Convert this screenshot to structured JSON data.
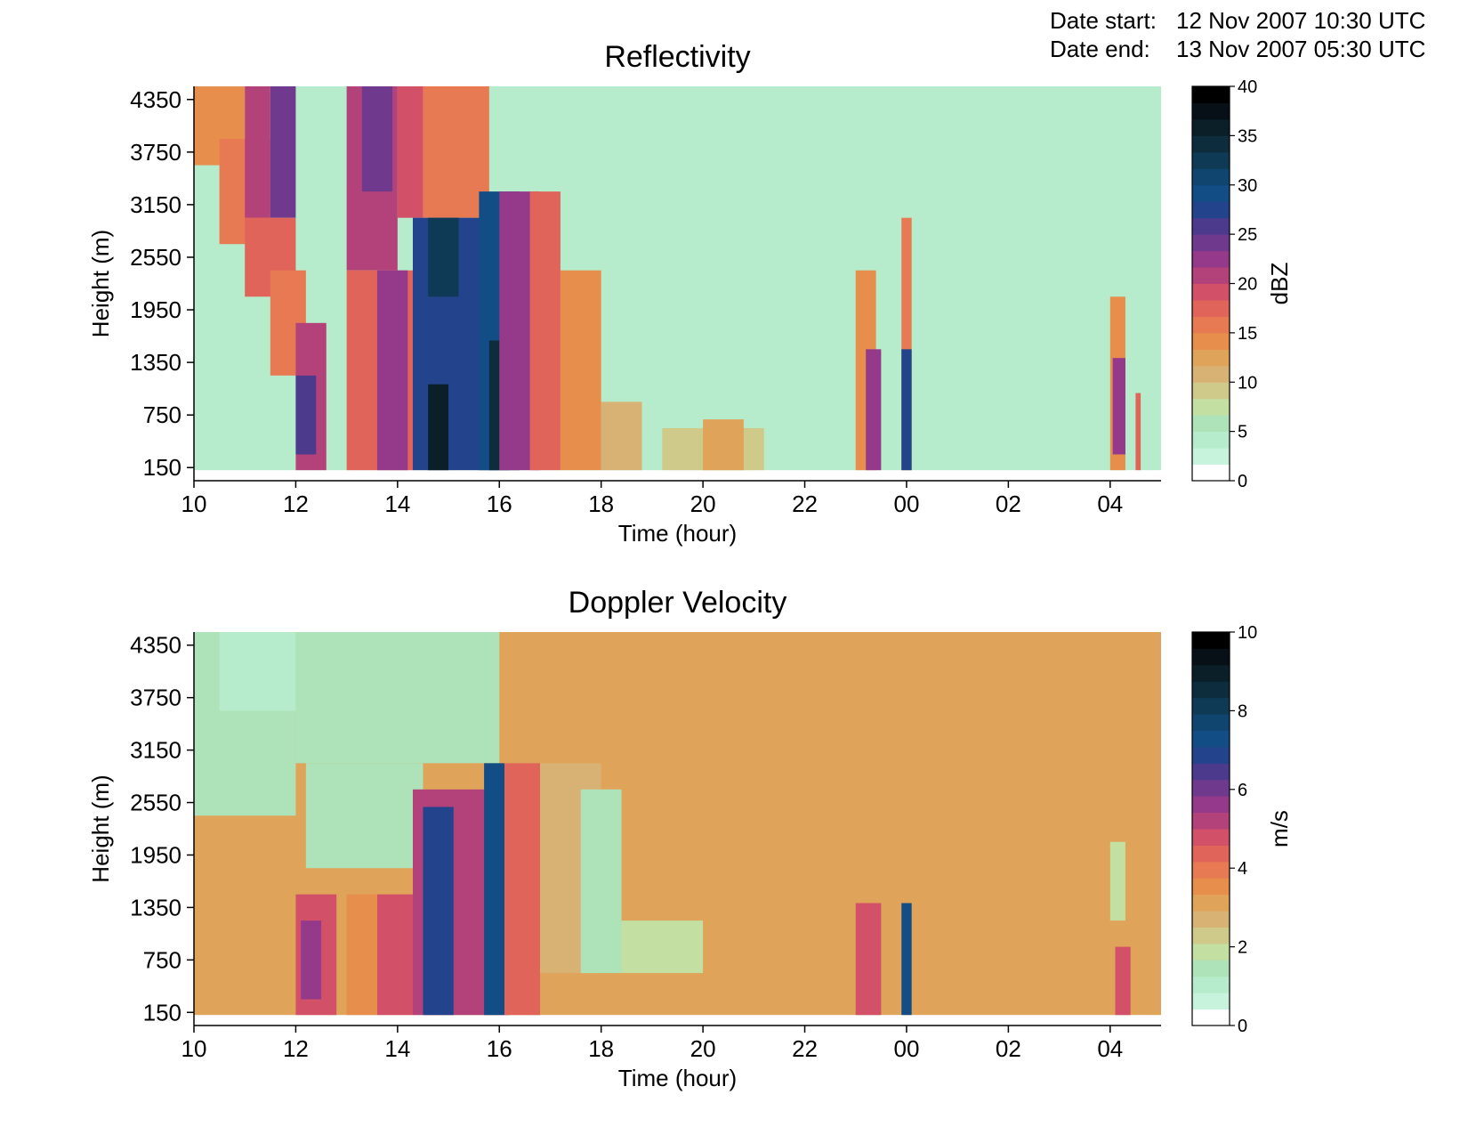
{
  "header": {
    "start_label": "Date start:",
    "start_value": "12 Nov 2007 10:30 UTC",
    "end_label": "Date end:",
    "end_value": "13 Nov 2007 05:30 UTC"
  },
  "chart_data": [
    {
      "type": "heatmap",
      "title": "Reflectivity",
      "xlabel": "Time (hour)",
      "ylabel": "Height (m)",
      "xlim": [
        10,
        29
      ],
      "ylim": [
        0,
        4500
      ],
      "x_ticks": [
        "10",
        "12",
        "14",
        "16",
        "18",
        "20",
        "22",
        "00",
        "02",
        "04"
      ],
      "y_ticks": [
        "150",
        "750",
        "1350",
        "1950",
        "2550",
        "3150",
        "3750",
        "4350"
      ],
      "colorbar": {
        "label": "dBZ",
        "min": 0,
        "max": 40,
        "ticks": [
          "0",
          "5",
          "10",
          "15",
          "20",
          "25",
          "30",
          "35",
          "40"
        ],
        "levels": [
          "#ffffff",
          "#c7f2dc",
          "#b6eccb",
          "#aee3b9",
          "#c3dfa2",
          "#cfc98a",
          "#d8b274",
          "#e0a35a",
          "#e88e4c",
          "#e77a52",
          "#e0645a",
          "#d25068",
          "#b4427a",
          "#95398a",
          "#6f3a8e",
          "#4c3b8c",
          "#23448c",
          "#134d86",
          "#0f456e",
          "#0f3a56",
          "#0d2c3c",
          "#0b1f29",
          "#061016",
          "#000000"
        ]
      },
      "cells": [
        {
          "x0": 10.0,
          "x1": 29.0,
          "y0": 0,
          "y1": 4500,
          "v": 4
        },
        {
          "x0": 10.0,
          "x1": 29.0,
          "y0": 0,
          "y1": 120,
          "v": 0
        },
        {
          "x0": 10.0,
          "x1": 11.0,
          "y0": 3600,
          "y1": 4500,
          "v": 14
        },
        {
          "x0": 10.5,
          "x1": 11.5,
          "y0": 2700,
          "y1": 3900,
          "v": 15
        },
        {
          "x0": 11.0,
          "x1": 11.5,
          "y0": 3000,
          "y1": 4500,
          "v": 20
        },
        {
          "x0": 11.5,
          "x1": 12.0,
          "y0": 3000,
          "y1": 4500,
          "v": 24
        },
        {
          "x0": 11.0,
          "x1": 12.0,
          "y0": 2100,
          "y1": 3000,
          "v": 18
        },
        {
          "x0": 11.5,
          "x1": 12.2,
          "y0": 1200,
          "y1": 2400,
          "v": 16
        },
        {
          "x0": 12.0,
          "x1": 12.6,
          "y0": 120,
          "y1": 1800,
          "v": 21
        },
        {
          "x0": 12.0,
          "x1": 12.4,
          "y0": 300,
          "y1": 1200,
          "v": 26
        },
        {
          "x0": 13.0,
          "x1": 14.0,
          "y0": 2400,
          "y1": 4500,
          "v": 20
        },
        {
          "x0": 13.3,
          "x1": 13.9,
          "y0": 3300,
          "y1": 4500,
          "v": 24
        },
        {
          "x0": 13.0,
          "x1": 14.3,
          "y0": 120,
          "y1": 2400,
          "v": 17
        },
        {
          "x0": 13.6,
          "x1": 14.2,
          "y0": 120,
          "y1": 2400,
          "v": 22
        },
        {
          "x0": 14.0,
          "x1": 14.5,
          "y0": 3000,
          "y1": 4500,
          "v": 19
        },
        {
          "x0": 14.5,
          "x1": 15.8,
          "y0": 3000,
          "y1": 4500,
          "v": 16
        },
        {
          "x0": 14.3,
          "x1": 16.0,
          "y0": 120,
          "y1": 3000,
          "v": 27
        },
        {
          "x0": 14.6,
          "x1": 15.2,
          "y0": 2100,
          "y1": 3000,
          "v": 33
        },
        {
          "x0": 14.6,
          "x1": 15.0,
          "y0": 120,
          "y1": 1100,
          "v": 36
        },
        {
          "x0": 15.6,
          "x1": 16.4,
          "y0": 120,
          "y1": 3300,
          "v": 29
        },
        {
          "x0": 15.8,
          "x1": 16.2,
          "y0": 120,
          "y1": 1600,
          "v": 35
        },
        {
          "x0": 16.0,
          "x1": 16.8,
          "y0": 120,
          "y1": 3300,
          "v": 22
        },
        {
          "x0": 16.6,
          "x1": 17.2,
          "y0": 120,
          "y1": 3300,
          "v": 17
        },
        {
          "x0": 17.2,
          "x1": 18.0,
          "y0": 120,
          "y1": 2400,
          "v": 14
        },
        {
          "x0": 18.0,
          "x1": 18.8,
          "y0": 120,
          "y1": 900,
          "v": 11
        },
        {
          "x0": 19.2,
          "x1": 21.2,
          "y0": 120,
          "y1": 600,
          "v": 9
        },
        {
          "x0": 20.0,
          "x1": 20.8,
          "y0": 120,
          "y1": 700,
          "v": 13
        },
        {
          "x0": 23.0,
          "x1": 23.4,
          "y0": 120,
          "y1": 2400,
          "v": 14
        },
        {
          "x0": 23.2,
          "x1": 23.5,
          "y0": 120,
          "y1": 1500,
          "v": 22
        },
        {
          "x0": 23.9,
          "x1": 24.1,
          "y0": 120,
          "y1": 3000,
          "v": 16
        },
        {
          "x0": 23.9,
          "x1": 24.1,
          "y0": 120,
          "y1": 1500,
          "v": 28
        },
        {
          "x0": 28.0,
          "x1": 28.3,
          "y0": 120,
          "y1": 2100,
          "v": 14
        },
        {
          "x0": 28.05,
          "x1": 28.3,
          "y0": 300,
          "y1": 1400,
          "v": 22
        },
        {
          "x0": 28.5,
          "x1": 28.6,
          "y0": 120,
          "y1": 1000,
          "v": 18
        }
      ]
    },
    {
      "type": "heatmap",
      "title": "Doppler Velocity",
      "xlabel": "Time (hour)",
      "ylabel": "Height (m)",
      "xlim": [
        10,
        29
      ],
      "ylim": [
        0,
        4500
      ],
      "x_ticks": [
        "10",
        "12",
        "14",
        "16",
        "18",
        "20",
        "22",
        "00",
        "02",
        "04"
      ],
      "y_ticks": [
        "150",
        "750",
        "1350",
        "1950",
        "2550",
        "3150",
        "3750",
        "4350"
      ],
      "colorbar": {
        "label": "m/s",
        "min": 0,
        "max": 10,
        "ticks": [
          "0",
          "2",
          "4",
          "6",
          "8",
          "10"
        ],
        "levels": [
          "#ffffff",
          "#c7f2dc",
          "#b6eccb",
          "#aee3b9",
          "#c3dfa2",
          "#cfc98a",
          "#d8b274",
          "#e0a35a",
          "#e88e4c",
          "#e77a52",
          "#e0645a",
          "#d25068",
          "#b4427a",
          "#95398a",
          "#6f3a8e",
          "#4c3b8c",
          "#23448c",
          "#134d86",
          "#0f456e",
          "#0f3a56",
          "#0d2c3c",
          "#0b1f29",
          "#061016",
          "#000000"
        ]
      },
      "cells": [
        {
          "x0": 10.0,
          "x1": 29.0,
          "y0": 0,
          "y1": 4500,
          "v": 3.0
        },
        {
          "x0": 10.0,
          "x1": 29.0,
          "y0": 0,
          "y1": 120,
          "v": 0
        },
        {
          "x0": 10.0,
          "x1": 12.0,
          "y0": 2400,
          "y1": 4500,
          "v": 1.2
        },
        {
          "x0": 10.5,
          "x1": 12.0,
          "y0": 3600,
          "y1": 4500,
          "v": 0.9
        },
        {
          "x0": 12.0,
          "x1": 16.0,
          "y0": 3000,
          "y1": 4500,
          "v": 1.2
        },
        {
          "x0": 12.2,
          "x1": 14.5,
          "y0": 1800,
          "y1": 3000,
          "v": 1.4
        },
        {
          "x0": 12.0,
          "x1": 12.8,
          "y0": 120,
          "y1": 1500,
          "v": 4.6
        },
        {
          "x0": 12.1,
          "x1": 12.5,
          "y0": 300,
          "y1": 1200,
          "v": 5.6
        },
        {
          "x0": 13.0,
          "x1": 13.6,
          "y0": 120,
          "y1": 1500,
          "v": 3.5
        },
        {
          "x0": 13.6,
          "x1": 14.3,
          "y0": 120,
          "y1": 1500,
          "v": 4.8
        },
        {
          "x0": 14.3,
          "x1": 16.2,
          "y0": 120,
          "y1": 2700,
          "v": 5.4
        },
        {
          "x0": 14.5,
          "x1": 15.1,
          "y0": 120,
          "y1": 2500,
          "v": 6.8
        },
        {
          "x0": 15.7,
          "x1": 16.1,
          "y0": 120,
          "y1": 3000,
          "v": 7.2
        },
        {
          "x0": 16.1,
          "x1": 16.8,
          "y0": 120,
          "y1": 3000,
          "v": 4.4
        },
        {
          "x0": 16.8,
          "x1": 18.0,
          "y0": 600,
          "y1": 3000,
          "v": 2.6
        },
        {
          "x0": 17.6,
          "x1": 18.4,
          "y0": 600,
          "y1": 2700,
          "v": 1.4
        },
        {
          "x0": 18.4,
          "x1": 20.0,
          "y0": 600,
          "y1": 1200,
          "v": 1.6
        },
        {
          "x0": 23.0,
          "x1": 23.5,
          "y0": 120,
          "y1": 1400,
          "v": 4.8
        },
        {
          "x0": 23.9,
          "x1": 24.1,
          "y0": 120,
          "y1": 1400,
          "v": 7.4
        },
        {
          "x0": 28.0,
          "x1": 28.3,
          "y0": 1200,
          "y1": 2100,
          "v": 1.6
        },
        {
          "x0": 28.1,
          "x1": 28.4,
          "y0": 120,
          "y1": 900,
          "v": 4.8
        }
      ]
    }
  ]
}
